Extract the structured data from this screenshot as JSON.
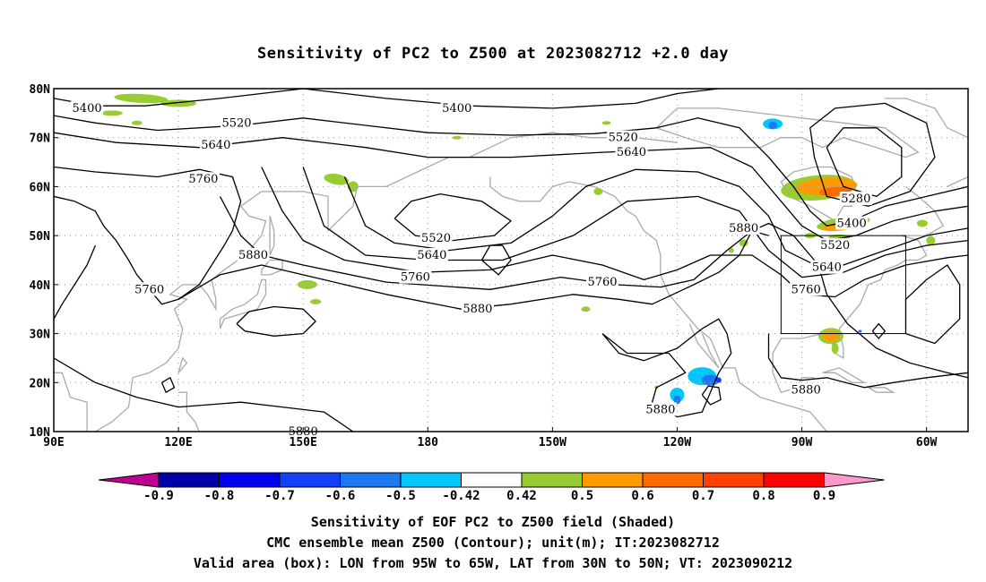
{
  "title": "Sensitivity of PC2 to Z500 at 2023082712 +2.0 day",
  "map": {
    "lat_labels": [
      "80N",
      "70N",
      "60N",
      "50N",
      "40N",
      "30N",
      "20N",
      "10N"
    ],
    "lon_labels": [
      "90E",
      "120E",
      "150E",
      "180",
      "150W",
      "120W",
      "90W",
      "60W"
    ],
    "lon_range": "90E to 50W",
    "lat_range": "10N to 80N",
    "gridlines": "dotted",
    "valid_box": {
      "lon_from": "95W",
      "lon_to": "65W",
      "lat_from": "30N",
      "lat_to": "50N"
    }
  },
  "contours": {
    "labels": [
      {
        "text": "5400",
        "lon": 98,
        "lat": 76
      },
      {
        "text": "5520",
        "lon": 134,
        "lat": 73
      },
      {
        "text": "5640",
        "lon": 129,
        "lat": 68.5
      },
      {
        "text": "5760",
        "lon": 126,
        "lat": 61.5
      },
      {
        "text": "5400",
        "lon": -173,
        "lat": 76
      },
      {
        "text": "5520",
        "lon": -133,
        "lat": 70
      },
      {
        "text": "5640",
        "lon": -131,
        "lat": 67
      },
      {
        "text": "5280",
        "lon": -77,
        "lat": 57.5
      },
      {
        "text": "5400",
        "lon": -78,
        "lat": 52.5
      },
      {
        "text": "5520",
        "lon": -82,
        "lat": 48
      },
      {
        "text": "5640",
        "lon": -84,
        "lat": 43.5
      },
      {
        "text": "5880",
        "lon": -104,
        "lat": 51.5
      },
      {
        "text": "5760",
        "lon": -89,
        "lat": 39
      },
      {
        "text": "5520",
        "lon": -178,
        "lat": 49.5
      },
      {
        "text": "5640",
        "lon": -179,
        "lat": 46
      },
      {
        "text": "5760",
        "lon": 177,
        "lat": 41.5
      },
      {
        "text": "5760",
        "lon": -138,
        "lat": 40.5
      },
      {
        "text": "5880",
        "lon": 138,
        "lat": 46
      },
      {
        "text": "5760",
        "lon": 113,
        "lat": 39
      },
      {
        "text": "5880",
        "lon": -168,
        "lat": 35
      },
      {
        "text": "5880",
        "lon": -89,
        "lat": 18.5
      },
      {
        "text": "5880",
        "lon": -124,
        "lat": 14.5
      },
      {
        "text": "5880",
        "lon": 150,
        "lat": 10
      }
    ]
  },
  "colorbar": {
    "labels": [
      "-0.9",
      "-0.8",
      "-0.7",
      "-0.6",
      "-0.5",
      "-0.42",
      "0.42",
      "0.5",
      "0.6",
      "0.7",
      "0.8",
      "0.9"
    ],
    "colors": [
      "#0000a8",
      "#0000ee",
      "#1240f5",
      "#1e78f0",
      "#00c8ff",
      "#ffffff",
      "#99cc33",
      "#ff9a00",
      "#ff6a00",
      "#ff4000",
      "#ff0000"
    ],
    "low_end_color": "#c00090",
    "high_end_color": "#ff99cc"
  },
  "footer": {
    "line1": "Sensitivity of EOF PC2 to Z500 field (Shaded)",
    "line2": "CMC ensemble mean Z500 (Contour); unit(m); IT:2023082712",
    "line3": "Valid area (box): LON from 95W to 65W, LAT from 30N to 50N; VT: 2023090212"
  }
}
